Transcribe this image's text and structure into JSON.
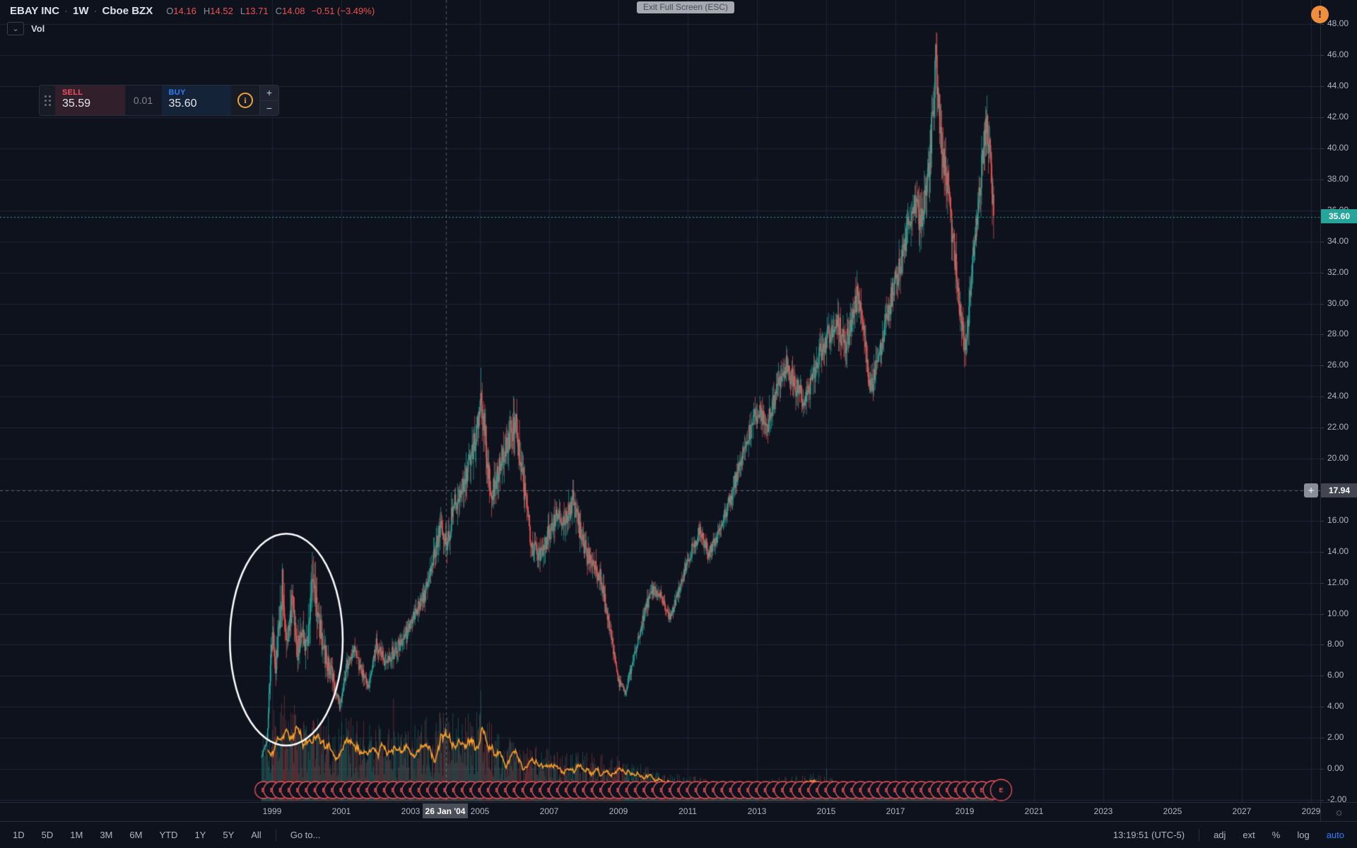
{
  "header": {
    "symbol": "EBAY INC",
    "sep": "·",
    "interval": "1W",
    "exchange": "Cboe BZX",
    "ohlc": {
      "o_label": "O",
      "o_value": "14.16",
      "h_label": "H",
      "h_value": "14.52",
      "l_label": "L",
      "l_value": "13.71",
      "c_label": "C",
      "c_value": "14.08",
      "change": "−0.51 (−3.49%)"
    }
  },
  "indicator": {
    "label": "Vol",
    "chevron": "⌄"
  },
  "order_panel": {
    "sell_label": "SELL",
    "sell_price": "35.59",
    "spread": "0.01",
    "buy_label": "BUY",
    "buy_price": "35.60",
    "info": "i",
    "plus": "+",
    "minus": "−"
  },
  "tooltip": {
    "text": "Exit Full Screen (ESC)"
  },
  "warning": {
    "glyph": "!"
  },
  "price_axis": {
    "min": -2,
    "max": 48,
    "step": 2,
    "last_price_label": "35.60",
    "crosshair_price_label": "17.94",
    "add_button": "+"
  },
  "time_axis": {
    "years": [
      1999,
      2001,
      2003,
      2005,
      2007,
      2009,
      2011,
      2013,
      2015,
      2017,
      2019,
      2021,
      2023,
      2025,
      2027,
      2029
    ],
    "crosshair_date": "26 Jan '04"
  },
  "corner": {
    "icon": "☼"
  },
  "toolbar": {
    "ranges": [
      "1D",
      "5D",
      "1M",
      "3M",
      "6M",
      "YTD",
      "1Y",
      "5Y",
      "All"
    ],
    "goto": "Go to...",
    "clock": "13:19:51 (UTC-5)",
    "options": [
      "adj",
      "ext",
      "%",
      "log"
    ],
    "auto": "auto"
  },
  "chart_data": {
    "type": "candlestick+volume",
    "title": "EBAY INC weekly candlestick chart with volume",
    "x_axis_years_visible": [
      1998.6,
      2029.6
    ],
    "data_years": [
      1998.7,
      2019.85
    ],
    "y_range": [
      -2,
      48
    ],
    "grid_step_price": 2,
    "grid_step_years": 2,
    "last_price": 35.6,
    "crosshair": {
      "year": 2004.02,
      "price": 17.94,
      "date": "26 Jan '04"
    },
    "price_anchors": [
      [
        1998.7,
        0.8
      ],
      [
        1998.85,
        1.8
      ],
      [
        1999.0,
        8.8
      ],
      [
        1999.1,
        6.3
      ],
      [
        1999.3,
        12.0
      ],
      [
        1999.42,
        8.2
      ],
      [
        1999.58,
        10.6
      ],
      [
        1999.72,
        7.6
      ],
      [
        1999.88,
        8.8
      ],
      [
        2000.0,
        8.0
      ],
      [
        2000.18,
        12.6
      ],
      [
        2000.34,
        9.6
      ],
      [
        2000.55,
        7.2
      ],
      [
        2000.75,
        5.8
      ],
      [
        2000.95,
        4.1
      ],
      [
        2001.15,
        6.6
      ],
      [
        2001.38,
        7.5
      ],
      [
        2001.6,
        6.2
      ],
      [
        2001.78,
        5.1
      ],
      [
        2002.0,
        8.0
      ],
      [
        2002.25,
        7.0
      ],
      [
        2002.55,
        7.6
      ],
      [
        2002.85,
        8.6
      ],
      [
        2003.1,
        9.8
      ],
      [
        2003.4,
        11.2
      ],
      [
        2003.65,
        13.5
      ],
      [
        2003.9,
        15.8
      ],
      [
        2004.05,
        14.2
      ],
      [
        2004.2,
        16.5
      ],
      [
        2004.45,
        18.0
      ],
      [
        2004.7,
        19.5
      ],
      [
        2004.9,
        22.0
      ],
      [
        2005.02,
        24.2
      ],
      [
        2005.15,
        21.5
      ],
      [
        2005.32,
        17.2
      ],
      [
        2005.55,
        19.5
      ],
      [
        2005.8,
        21.3
      ],
      [
        2006.02,
        22.4
      ],
      [
        2006.25,
        18.5
      ],
      [
        2006.5,
        14.3
      ],
      [
        2006.75,
        13.6
      ],
      [
        2007.0,
        15.2
      ],
      [
        2007.22,
        16.6
      ],
      [
        2007.45,
        15.8
      ],
      [
        2007.7,
        17.4
      ],
      [
        2007.95,
        14.8
      ],
      [
        2008.2,
        13.2
      ],
      [
        2008.5,
        12.4
      ],
      [
        2008.75,
        9.0
      ],
      [
        2009.0,
        5.6
      ],
      [
        2009.2,
        5.0
      ],
      [
        2009.4,
        6.8
      ],
      [
        2009.65,
        9.2
      ],
      [
        2009.95,
        11.6
      ],
      [
        2010.2,
        11.2
      ],
      [
        2010.5,
        9.7
      ],
      [
        2010.8,
        12.0
      ],
      [
        2011.1,
        14.0
      ],
      [
        2011.35,
        15.3
      ],
      [
        2011.6,
        13.9
      ],
      [
        2011.9,
        15.2
      ],
      [
        2012.2,
        17.2
      ],
      [
        2012.5,
        19.6
      ],
      [
        2012.8,
        21.8
      ],
      [
        2013.05,
        23.2
      ],
      [
        2013.3,
        22.2
      ],
      [
        2013.6,
        24.8
      ],
      [
        2013.85,
        26.0
      ],
      [
        2014.1,
        24.8
      ],
      [
        2014.4,
        23.6
      ],
      [
        2014.7,
        26.2
      ],
      [
        2015.0,
        27.6
      ],
      [
        2015.3,
        29.0
      ],
      [
        2015.55,
        27.2
      ],
      [
        2015.9,
        30.4
      ],
      [
        2016.1,
        28.2
      ],
      [
        2016.28,
        24.2
      ],
      [
        2016.55,
        26.8
      ],
      [
        2016.8,
        29.6
      ],
      [
        2017.05,
        31.8
      ],
      [
        2017.3,
        34.2
      ],
      [
        2017.55,
        36.6
      ],
      [
        2017.75,
        35.2
      ],
      [
        2017.95,
        38.5
      ],
      [
        2018.1,
        43.0
      ],
      [
        2018.17,
        45.8
      ],
      [
        2018.3,
        40.8
      ],
      [
        2018.5,
        37.6
      ],
      [
        2018.7,
        33.2
      ],
      [
        2018.9,
        28.8
      ],
      [
        2019.02,
        26.8
      ],
      [
        2019.18,
        31.5
      ],
      [
        2019.38,
        36.2
      ],
      [
        2019.55,
        40.3
      ],
      [
        2019.65,
        41.8
      ],
      [
        2019.75,
        38.6
      ],
      [
        2019.85,
        35.8
      ]
    ],
    "volume_anchors": [
      [
        1998.7,
        0.45
      ],
      [
        1999.3,
        0.72
      ],
      [
        1999.9,
        0.58
      ],
      [
        2000.4,
        0.6
      ],
      [
        2001.0,
        0.55
      ],
      [
        2001.6,
        0.58
      ],
      [
        2002.2,
        0.5
      ],
      [
        2002.8,
        0.46
      ],
      [
        2003.4,
        0.55
      ],
      [
        2004.0,
        0.6
      ],
      [
        2004.6,
        0.58
      ],
      [
        2005.1,
        0.6
      ],
      [
        2005.6,
        0.44
      ],
      [
        2006.2,
        0.4
      ],
      [
        2006.8,
        0.37
      ],
      [
        2007.4,
        0.32
      ],
      [
        2008.0,
        0.33
      ],
      [
        2008.8,
        0.31
      ],
      [
        2009.4,
        0.27
      ],
      [
        2010.0,
        0.22
      ],
      [
        2010.8,
        0.18
      ],
      [
        2011.6,
        0.15
      ],
      [
        2012.4,
        0.14
      ],
      [
        2013.2,
        0.15
      ],
      [
        2014.0,
        0.17
      ],
      [
        2014.8,
        0.19
      ],
      [
        2015.4,
        0.14
      ],
      [
        2016.2,
        0.12
      ],
      [
        2017.0,
        0.1
      ],
      [
        2017.8,
        0.09
      ],
      [
        2018.4,
        0.12
      ],
      [
        2019.0,
        0.11
      ],
      [
        2019.85,
        0.09
      ]
    ],
    "volume_spikes": [
      [
        2002.5,
        0.88
      ],
      [
        2004.05,
        0.62
      ],
      [
        2005.02,
        0.95
      ],
      [
        2009.0,
        0.35
      ],
      [
        2015.0,
        0.28
      ]
    ],
    "earnings_markers": {
      "label": "E",
      "start_year": 1998.75,
      "end_year": 2019.55,
      "interval_years": 0.25
    },
    "drawing": {
      "type": "ellipse",
      "cx_year": 1999.41,
      "cy_price": 8.33,
      "rx_years": 1.63,
      "ry_price": 6.83,
      "color": "#ffffff"
    },
    "colors": {
      "background": "#0e121d",
      "grid": "rgba(44,52,70,0.55)",
      "up": "#26a69a",
      "down": "#ef5350",
      "vol_up": "rgba(38,166,154,0.45)",
      "vol_down": "rgba(239,83,80,0.45)",
      "vol_ma": "#f89e2b",
      "last_price_line": "#26a69a",
      "earnings": "#f2545b",
      "crosshair": "rgba(149,152,161,0.55)"
    }
  }
}
